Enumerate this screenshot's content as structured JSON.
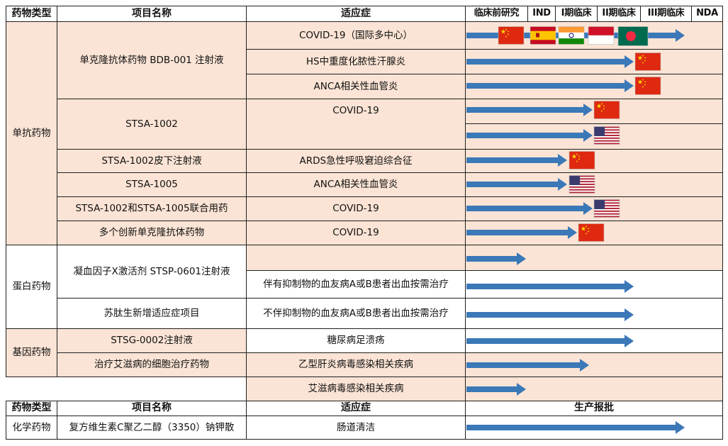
{
  "header": {
    "type_label": "药物类型",
    "name_label": "项目名称",
    "indication_label": "适应症",
    "stages": [
      "临床前研究",
      "IND",
      "I期临床",
      "II期临床",
      "III期临床",
      "NDA"
    ]
  },
  "groups": [
    {
      "label": "单抗药物",
      "color": "pink"
    },
    {
      "label": "蛋白药物",
      "color": "white"
    },
    {
      "label": "基因药物",
      "color": "pink"
    }
  ],
  "projects": [
    {
      "name": "单克隆抗体药物  BDB-001 注射液"
    },
    {
      "name": "STSA-1002"
    },
    {
      "name": "STSA-1002皮下注射液"
    },
    {
      "name": "STSA-1005"
    },
    {
      "name": "STSA-1002和STSA-1005联合用药"
    },
    {
      "name": "多个创新单克隆抗体药物"
    },
    {
      "name": "凝血因子X激活剂  STSP-0601注射液"
    },
    {
      "name": "苏肽生新增适应症项目"
    },
    {
      "name": "STSG-0002注射液"
    },
    {
      "name": "治疗艾滋病的细胞治疗药物"
    }
  ],
  "indications": [
    {
      "text": "COVID-19（国际多中心）"
    },
    {
      "text": "HS中重度化脓性汗腺炎"
    },
    {
      "text": "ANCA相关性血管炎"
    },
    {
      "text": "COVID-19"
    },
    {
      "text": "ARDS急性呼吸窘迫综合征"
    },
    {
      "text": "ANCA相关性血管炎"
    },
    {
      "text": "COVID-19"
    },
    {
      "text": "COVID-19"
    },
    {
      "text": ""
    },
    {
      "text": "伴有抑制物的血友病A或B患者出血按需治疗"
    },
    {
      "text": "不伴抑制物的血友病A或B患者出血按需治疗"
    },
    {
      "text": "糖尿病足溃疡"
    },
    {
      "text": "乙型肝炎病毒感染相关疾病"
    },
    {
      "text": "艾滋病毒感染相关疾病"
    }
  ],
  "pipeline_progress": [
    {
      "row": 1,
      "stage_reached": "III期临床",
      "flags": [
        "China",
        "Spain",
        "India",
        "Indonesia",
        "Bangladesh"
      ]
    },
    {
      "row": 2,
      "stage_reached": "II期临床",
      "flags": [
        "China"
      ]
    },
    {
      "row": 3,
      "stage_reached": "II期临床",
      "flags": [
        "China"
      ]
    },
    {
      "row": 4,
      "stage_reached": "I期临床",
      "flags": [
        "China"
      ]
    },
    {
      "row": 5,
      "stage_reached": "I期临床",
      "flags": [
        "USA"
      ]
    },
    {
      "row": 6,
      "stage_reached": "IND",
      "flags": [
        "China"
      ]
    },
    {
      "row": 7,
      "stage_reached": "IND",
      "flags": [
        "USA"
      ]
    },
    {
      "row": 8,
      "stage_reached": "I期临床",
      "flags": [
        "USA"
      ]
    },
    {
      "row": 9,
      "stage_reached": "IND",
      "flags": [
        "China"
      ]
    },
    {
      "row": 10,
      "stage_reached": "临床前研究",
      "flags": []
    },
    {
      "row": 11,
      "stage_reached": "II期临床",
      "flags": []
    },
    {
      "row": 12,
      "stage_reached": "II期临床",
      "flags": []
    },
    {
      "row": 13,
      "stage_reached": "II期临床",
      "flags": []
    },
    {
      "row": 14,
      "stage_reached": "I期临床",
      "flags": []
    },
    {
      "row": 15,
      "stage_reached": "临床前研究",
      "flags": []
    },
    {
      "row": 16,
      "stage_reached": "生产报批",
      "flags": []
    }
  ],
  "second_header": {
    "type_label": "药物类型",
    "name_label": "项目名称",
    "indication_label": "适应症",
    "stage_label": "生产报批"
  },
  "chemical": {
    "type": "化学药物",
    "name": "复方维生素C聚乙二醇（3350）钠钾散",
    "indication": "肠道清洁"
  },
  "colors": {
    "pink": "#fbe4d5",
    "arrow": "#3b78b8",
    "border": "#1f1f1f"
  }
}
